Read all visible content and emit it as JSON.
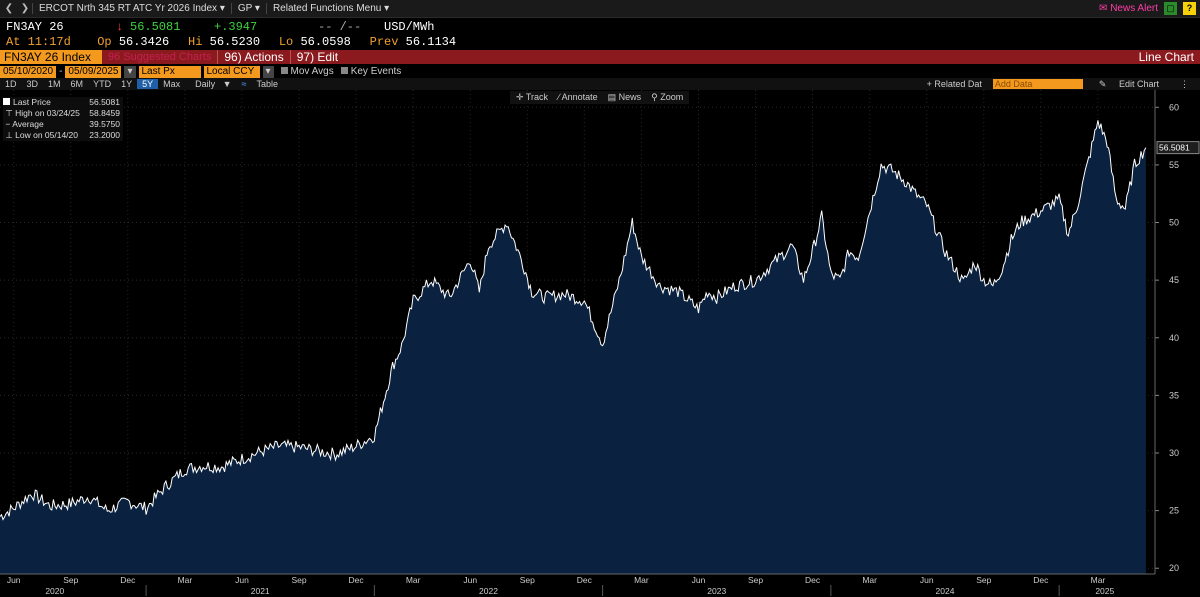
{
  "topbar": {
    "security": "ERCOT Nrth 345 RT ATC Yr 2026 Index",
    "gp": "GP",
    "menu": "Related Functions Menu",
    "news_alert": "News Alert",
    "help": "?"
  },
  "quote": {
    "ticker": "FN3AY 26",
    "last": "56.5081",
    "change": "+.3947",
    "placeholder": "-- /--",
    "units": "USD/MWh",
    "time_label": "At",
    "time": "11:17d",
    "open_label": "Op",
    "open": "56.3426",
    "high_label": "Hi",
    "high": "56.5230",
    "low_label": "Lo",
    "low": "56.0598",
    "prev_label": "Prev",
    "prev": "56.1134"
  },
  "titlebar": {
    "index": "FN3AY 26 Index",
    "suggested": "96 Suggested Charts",
    "actions": "96) Actions",
    "edit": "97) Edit",
    "chart_type": "Line Chart"
  },
  "controls": {
    "start_date": "05/10/2020",
    "end_date": "05/09/2025",
    "field": "Last Px",
    "currency": "Local CCY",
    "mov_avgs": "Mov Avgs",
    "key_events": "Key Events"
  },
  "periods": {
    "items": [
      "1D",
      "3D",
      "1M",
      "6M",
      "YTD",
      "1Y",
      "5Y",
      "Max"
    ],
    "selected": "5Y",
    "frequency": "Daily",
    "table": "Table",
    "related_data": "+ Related Dat",
    "add_data": "Add Data",
    "edit_chart": "Edit Chart"
  },
  "tools": {
    "track": "Track",
    "annotate": "Annotate",
    "news": "News",
    "zoom": "Zoom"
  },
  "legend": {
    "last_label": "Last Price",
    "last_value": "56.5081",
    "high_label": "High on 03/24/25",
    "high_value": "58.8459",
    "avg_label": "Average",
    "avg_value": "39.5750",
    "low_label": "Low on 05/14/20",
    "low_value": "23.2000"
  },
  "colors": {
    "line": "#ffffff",
    "fill": "#0a2240",
    "accent": "#f39a1e",
    "title_bar": "#8b1a1f"
  },
  "chart_data": {
    "type": "area",
    "ylim": [
      19.5,
      61.5
    ],
    "yticks": [
      20,
      25,
      30,
      35,
      40,
      45,
      50,
      55,
      60
    ],
    "last_value_label": "56.5081",
    "x_month_labels": [
      {
        "label": "Jun",
        "t": 2020.42
      },
      {
        "label": "Sep",
        "t": 2020.67
      },
      {
        "label": "Dec",
        "t": 2020.92
      },
      {
        "label": "Mar",
        "t": 2021.17
      },
      {
        "label": "Jun",
        "t": 2021.42
      },
      {
        "label": "Sep",
        "t": 2021.67
      },
      {
        "label": "Dec",
        "t": 2021.92
      },
      {
        "label": "Mar",
        "t": 2022.17
      },
      {
        "label": "Jun",
        "t": 2022.42
      },
      {
        "label": "Sep",
        "t": 2022.67
      },
      {
        "label": "Dec",
        "t": 2022.92
      },
      {
        "label": "Mar",
        "t": 2023.17
      },
      {
        "label": "Jun",
        "t": 2023.42
      },
      {
        "label": "Sep",
        "t": 2023.67
      },
      {
        "label": "Dec",
        "t": 2023.92
      },
      {
        "label": "Mar",
        "t": 2024.17
      },
      {
        "label": "Jun",
        "t": 2024.42
      },
      {
        "label": "Sep",
        "t": 2024.67
      },
      {
        "label": "Dec",
        "t": 2024.92
      },
      {
        "label": "Mar",
        "t": 2025.17
      }
    ],
    "x_year_labels": [
      {
        "label": "2020",
        "t": 2020.6
      },
      {
        "label": "2021",
        "t": 2021.5
      },
      {
        "label": "2022",
        "t": 2022.5
      },
      {
        "label": "2023",
        "t": 2023.5
      },
      {
        "label": "2024",
        "t": 2024.5
      },
      {
        "label": "2025",
        "t": 2025.2
      }
    ],
    "xlim": [
      2020.36,
      2025.42
    ],
    "series": [
      {
        "x": [
          2020.36,
          2020.42,
          2020.5,
          2020.58,
          2020.67,
          2020.75,
          2020.83,
          2020.92,
          2021.0,
          2021.08,
          2021.17,
          2021.25,
          2021.33,
          2021.42,
          2021.5,
          2021.58,
          2021.67,
          2021.75,
          2021.83,
          2021.92,
          2022.0,
          2022.04,
          2022.08,
          2022.12,
          2022.17,
          2022.25,
          2022.33,
          2022.42,
          2022.46,
          2022.5,
          2022.58,
          2022.65,
          2022.69,
          2022.75,
          2022.83,
          2022.92,
          2023.0,
          2023.08,
          2023.13,
          2023.17,
          2023.25,
          2023.33,
          2023.42,
          2023.46,
          2023.5,
          2023.58,
          2023.67,
          2023.75,
          2023.83,
          2023.88,
          2023.92,
          2023.96,
          2024.0,
          2024.04,
          2024.08,
          2024.12,
          2024.17,
          2024.22,
          2024.27,
          2024.33,
          2024.37,
          2024.42,
          2024.5,
          2024.58,
          2024.63,
          2024.67,
          2024.71,
          2024.75,
          2024.79,
          2024.83,
          2024.92,
          2025.0,
          2025.04,
          2025.08,
          2025.13,
          2025.17,
          2025.21,
          2025.25,
          2025.29,
          2025.33,
          2025.38
        ],
        "values": [
          24.5,
          25.2,
          26.5,
          25.4,
          25.6,
          26.2,
          25.0,
          25.8,
          25.2,
          27.0,
          28.6,
          28.9,
          28.8,
          29.5,
          30.1,
          30.6,
          30.5,
          30.2,
          29.9,
          30.6,
          31.5,
          34.5,
          37.5,
          39.3,
          43.2,
          45.0,
          43.5,
          46.8,
          44.0,
          48.0,
          50.0,
          46.5,
          44.0,
          43.5,
          43.8,
          43.2,
          39.5,
          45.5,
          50.0,
          47.0,
          44.5,
          44.0,
          42.5,
          44.0,
          43.5,
          44.5,
          45.0,
          46.5,
          48.0,
          45.0,
          47.5,
          50.5,
          45.5,
          45.0,
          47.5,
          47.0,
          51.0,
          55.0,
          54.5,
          53.5,
          52.5,
          51.5,
          47.5,
          44.8,
          46.5,
          45.0,
          44.5,
          46.0,
          48.5,
          50.0,
          51.0,
          52.0,
          49.0,
          51.5,
          55.5,
          58.8,
          57.0,
          52.0,
          51.2,
          55.0,
          56.5
        ]
      }
    ]
  }
}
